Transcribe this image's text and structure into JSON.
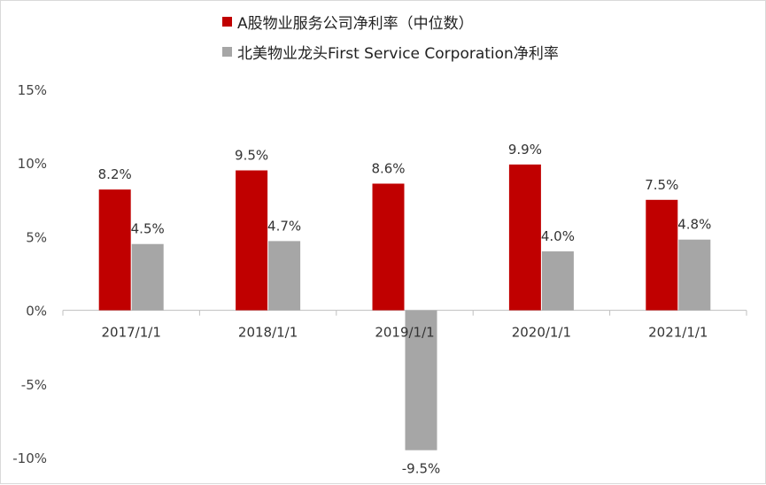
{
  "chart_data": {
    "type": "bar",
    "categories": [
      "2017/1/1",
      "2018/1/1",
      "2019/1/1",
      "2020/1/1",
      "2021/1/1"
    ],
    "series": [
      {
        "name": "A股物业服务公司净利率（中位数）",
        "color": "#c00000",
        "values": [
          8.2,
          9.5,
          8.6,
          9.9,
          7.5
        ],
        "labels": [
          "8.2%",
          "9.5%",
          "8.6%",
          "9.9%",
          "7.5%"
        ]
      },
      {
        "name": "北美物业龙头First Service Corporation净利率",
        "color": "#a6a6a6",
        "values": [
          4.5,
          4.7,
          -9.5,
          4.0,
          4.8
        ],
        "labels": [
          "4.5%",
          "4.7%",
          "-9.5%",
          "4.0%",
          "4.8%"
        ]
      }
    ],
    "y_ticks": [
      15,
      10,
      5,
      0,
      -5,
      -10
    ],
    "y_tick_labels": [
      "15%",
      "10%",
      "5%",
      "0%",
      "-5%",
      "-10%"
    ],
    "ylim": [
      -10,
      15
    ],
    "grid": false,
    "legend_position": "top"
  }
}
